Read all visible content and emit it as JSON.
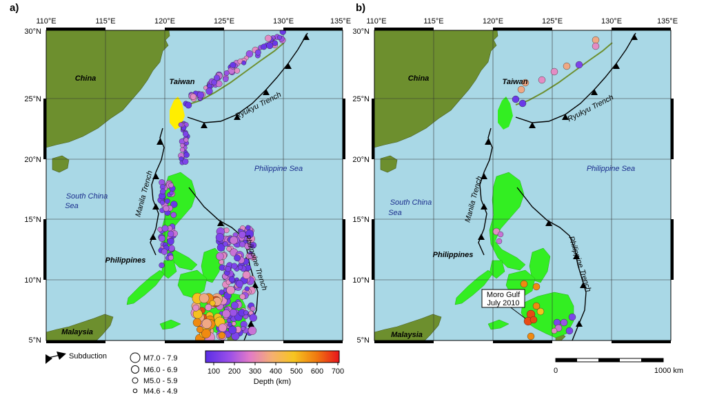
{
  "panels": [
    {
      "label": "a)"
    },
    {
      "label": "b)"
    }
  ],
  "axes": {
    "lon_labels": [
      "110°E",
      "115°E",
      "120°E",
      "125°E",
      "130°E",
      "135°E"
    ],
    "lat_labels": [
      "30°N",
      "25°N",
      "20°N",
      "15°N",
      "10°N",
      "5°N"
    ]
  },
  "places": {
    "china": "China",
    "taiwan": "Taiwan",
    "philippine_sea": "Philippine Sea",
    "south_china_sea_line1": "South China",
    "south_china_sea_line2": "Sea",
    "philippines": "Philippines",
    "malaysia": "Malaysia"
  },
  "trenches": {
    "manila": "Manila Trench",
    "ryukyu": "Ryukyu Trench",
    "philippine": "Philippine Trench"
  },
  "annotation": {
    "line1": "Moro Gulf",
    "line2": "July 2010"
  },
  "legend": {
    "subduction": "Subduction",
    "magnitudes": [
      "M7.0 - 7.9",
      "M6.0 - 6.9",
      "M5.0 - 5.9",
      "M4.6 - 4.9"
    ],
    "depth_title": "Depth (km)",
    "depth_ticks": [
      "100",
      "200",
      "300",
      "400",
      "500",
      "600",
      "700"
    ]
  },
  "scale_bar": {
    "start": "0",
    "end": "1000 km"
  },
  "colors": {
    "ocean": "#a9d8e6",
    "mainland": "#6d8f2e",
    "philippines": "#33ee22",
    "taiwan": "#ffee00",
    "shallow": "#7733ee",
    "deep": "#ee2222"
  }
}
